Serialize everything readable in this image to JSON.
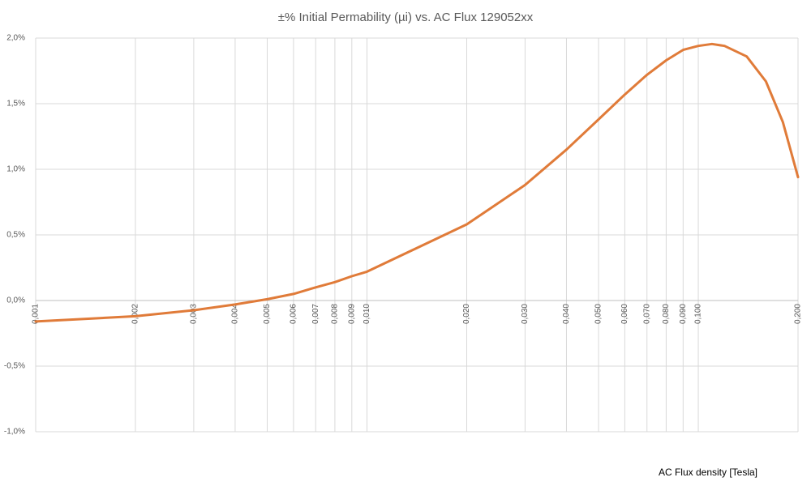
{
  "chart_data": {
    "type": "line",
    "title": "±% Initial Permability (µi) vs. AC Flux 129052xx",
    "x_label": "AC Flux density [Tesla]",
    "x": [
      0.001,
      0.002,
      0.003,
      0.004,
      0.005,
      0.006,
      0.007,
      0.008,
      0.009,
      0.01,
      0.02,
      0.03,
      0.04,
      0.05,
      0.06,
      0.07,
      0.08,
      0.09,
      0.1,
      0.11,
      0.12,
      0.14,
      0.16,
      0.18,
      0.2
    ],
    "values": [
      -0.16,
      -0.12,
      -0.074,
      -0.03,
      0.01,
      0.05,
      0.1,
      0.14,
      0.185,
      0.22,
      0.58,
      0.88,
      1.15,
      1.38,
      1.57,
      1.72,
      1.83,
      1.91,
      1.94,
      1.955,
      1.94,
      1.86,
      1.67,
      1.36,
      0.94
    ],
    "color": "#e07b39",
    "xscale": "log",
    "xlim": [
      0.001,
      0.2
    ],
    "xticks": [
      {
        "value": 0.001,
        "label": "0,001"
      },
      {
        "value": 0.002,
        "label": "0,002"
      },
      {
        "value": 0.003,
        "label": "0,003"
      },
      {
        "value": 0.004,
        "label": "0,004"
      },
      {
        "value": 0.005,
        "label": "0,005"
      },
      {
        "value": 0.006,
        "label": "0,006"
      },
      {
        "value": 0.007,
        "label": "0,007"
      },
      {
        "value": 0.008,
        "label": "0,008"
      },
      {
        "value": 0.009,
        "label": "0,009"
      },
      {
        "value": 0.01,
        "label": "0,010"
      },
      {
        "value": 0.02,
        "label": "0,020"
      },
      {
        "value": 0.03,
        "label": "0,030"
      },
      {
        "value": 0.04,
        "label": "0,040"
      },
      {
        "value": 0.05,
        "label": "0,050"
      },
      {
        "value": 0.06,
        "label": "0,060"
      },
      {
        "value": 0.07,
        "label": "0,070"
      },
      {
        "value": 0.08,
        "label": "0,080"
      },
      {
        "value": 0.09,
        "label": "0,090"
      },
      {
        "value": 0.1,
        "label": "0,100"
      },
      {
        "value": 0.2,
        "label": "0,200"
      }
    ],
    "ylim": [
      -1.0,
      2.0
    ],
    "yticks": [
      {
        "value": -1.0,
        "label": "-1,0%"
      },
      {
        "value": -0.5,
        "label": "-0,5%"
      },
      {
        "value": 0,
        "label": "0,0%"
      },
      {
        "value": 0.5,
        "label": "0,5%"
      },
      {
        "value": 1.0,
        "label": "1,0%"
      },
      {
        "value": 1.5,
        "label": "1,5%"
      },
      {
        "value": 2.0,
        "label": "2,0%"
      }
    ],
    "grid": true
  }
}
